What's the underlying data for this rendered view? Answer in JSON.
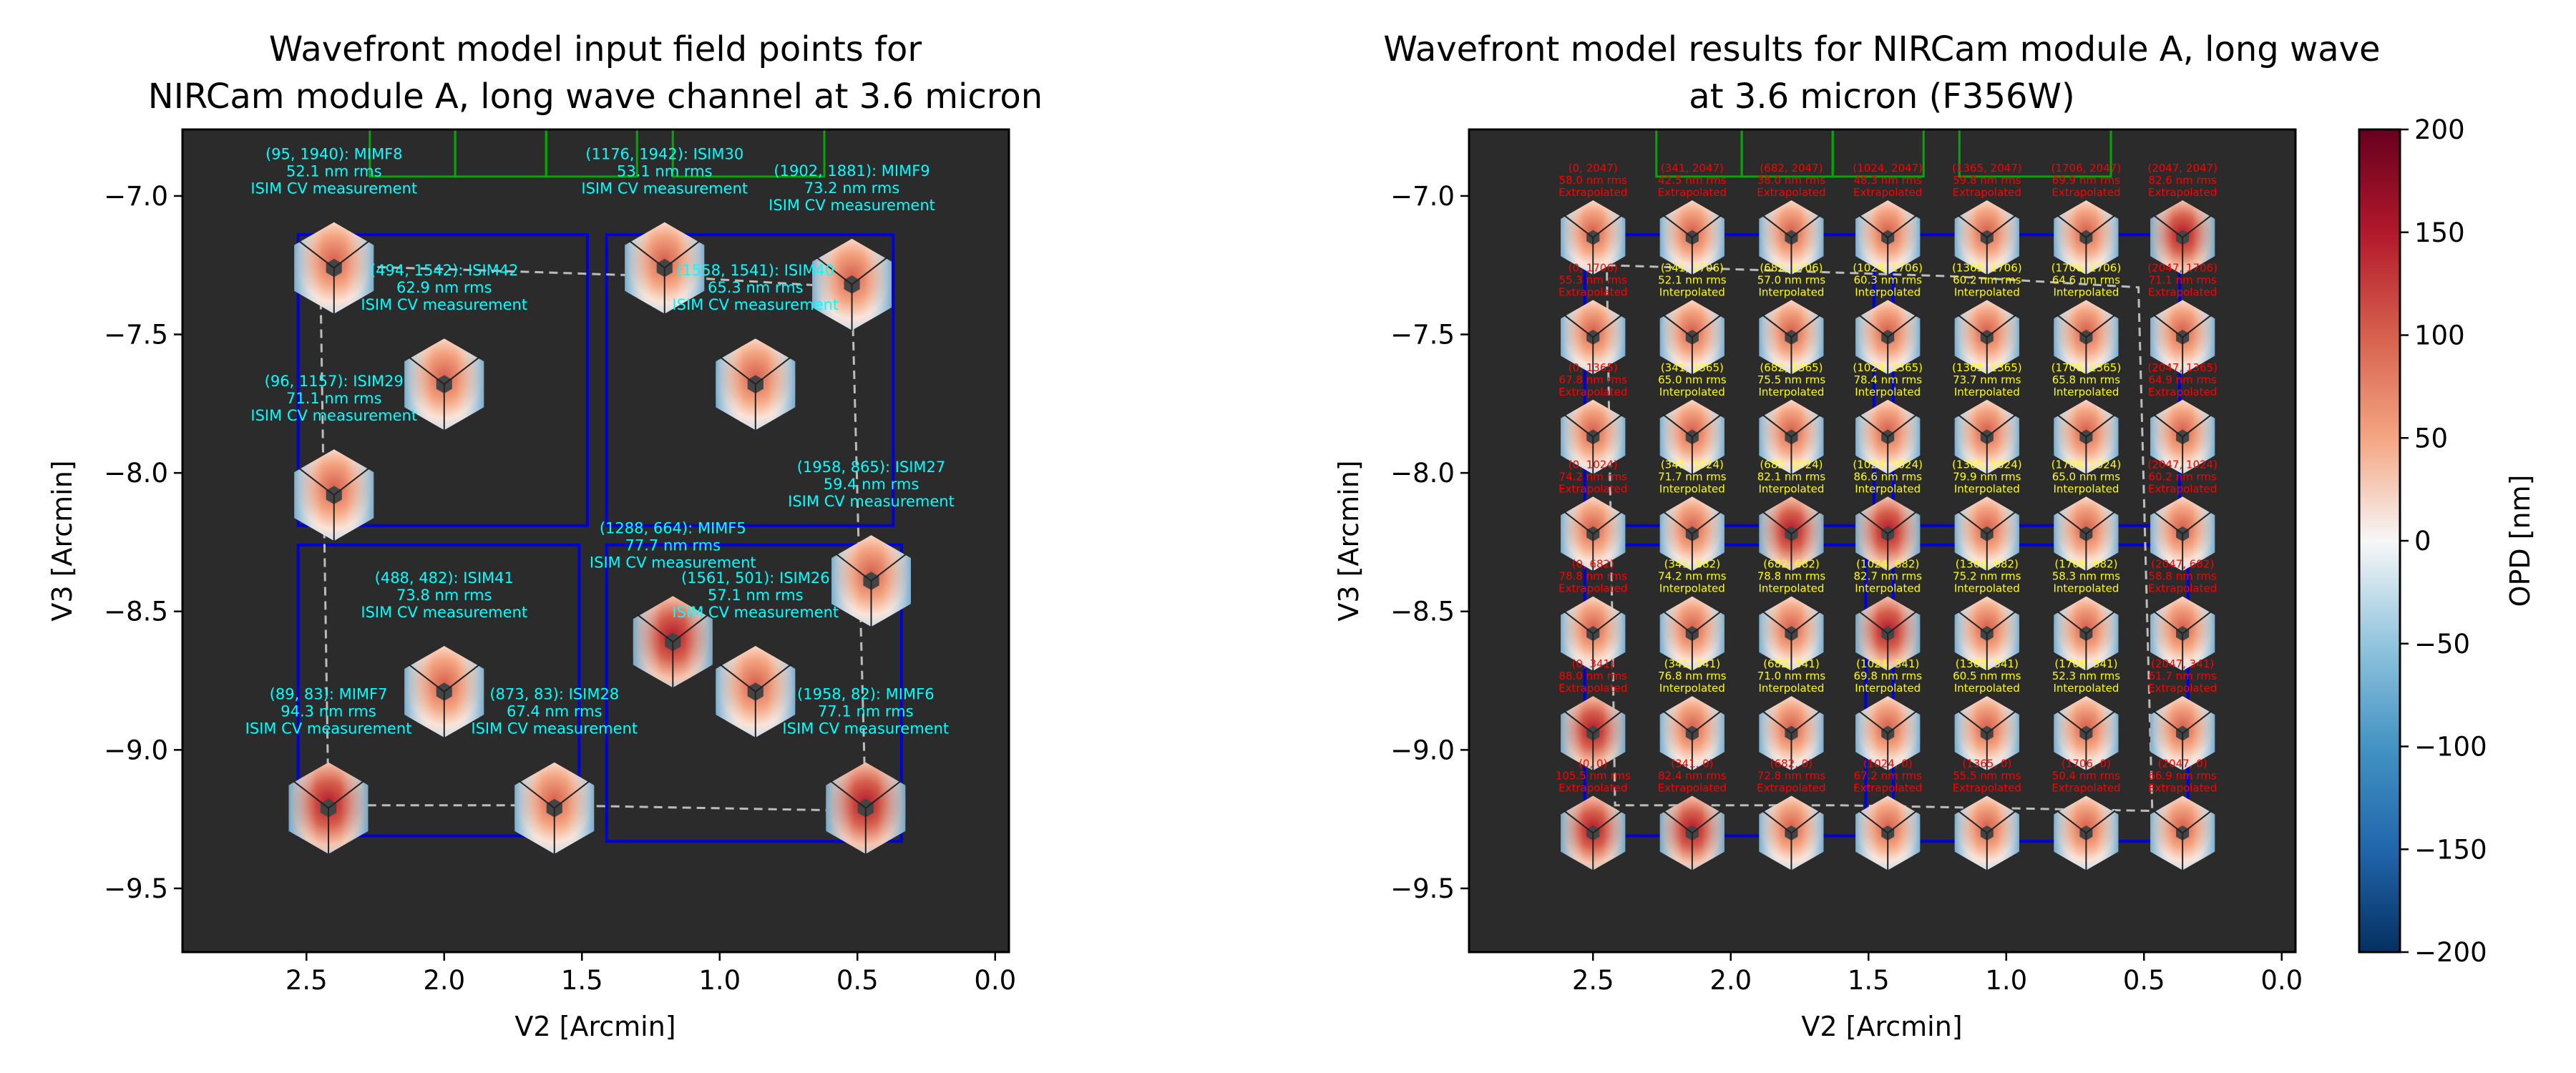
{
  "colors": {
    "plot_bg": "#2b2b2b",
    "field_label": "#00ffff",
    "extrap_label": "#ff0000",
    "interp_label": "#ffff00",
    "aperture_outline": "#0000dd",
    "neighbor_outline": "#00aa00",
    "dashed_outline": "#bbbbbb",
    "axis_text": "#000000"
  },
  "chart_data": [
    {
      "type": "scatter",
      "title_lines": [
        "Wavefront model input field points for",
        "NIRCam module A, long wave channel at 3.6 micron"
      ],
      "xlabel": "V2 [Arcmin]",
      "ylabel": "V3 [Arcmin]",
      "xlim": [
        2.95,
        -0.05
      ],
      "ylim": [
        -9.73,
        -6.76
      ],
      "xticks": [
        "2.5",
        "2.0",
        "1.5",
        "1.0",
        "0.5",
        "0.0"
      ],
      "yticks": [
        "-7.0",
        "-7.5",
        "-8.0",
        "-8.5",
        "-9.0",
        "-9.5"
      ],
      "points": [
        {
          "v2": 2.4,
          "v3": -7.26,
          "label": [
            "(95, 1940): MIMF8",
            "52.1 nm rms",
            "ISIM CV measurement"
          ],
          "opd": 52.1
        },
        {
          "v2": 1.2,
          "v3": -7.26,
          "label": [
            "(1176, 1942): ISIM30",
            "53.1 nm rms",
            "ISIM CV measurement"
          ],
          "opd": 53.1
        },
        {
          "v2": 0.52,
          "v3": -7.32,
          "label": [
            "(1902, 1881): MIMF9",
            "73.2 nm rms",
            "ISIM CV measurement"
          ],
          "opd": 73.2
        },
        {
          "v2": 2.0,
          "v3": -7.68,
          "label": [
            "(494, 1542): ISIM42",
            "62.9 nm rms",
            "ISIM CV measurement"
          ],
          "opd": 62.9
        },
        {
          "v2": 0.87,
          "v3": -7.68,
          "label": [
            "(1558, 1541): ISIM40",
            "65.3 nm rms",
            "ISIM CV measurement"
          ],
          "opd": 65.3
        },
        {
          "v2": 2.4,
          "v3": -8.08,
          "label": [
            "(96, 1157): ISIM29",
            "71.1 nm rms",
            "ISIM CV measurement"
          ],
          "opd": 71.1
        },
        {
          "v2": 0.45,
          "v3": -8.39,
          "label": [
            "(1958, 865): ISIM27",
            "59.4 nm rms",
            "ISIM CV measurement"
          ],
          "opd": 59.4
        },
        {
          "v2": 1.17,
          "v3": -8.61,
          "label": [
            "(1288, 664): MIMF5",
            "77.7 nm rms",
            "ISIM CV measurement"
          ],
          "opd": 77.7
        },
        {
          "v2": 0.87,
          "v3": -8.79,
          "label": [
            "(1561, 501): ISIM26",
            "57.1 nm rms",
            "ISIM CV measurement"
          ],
          "opd": 57.1
        },
        {
          "v2": 2.0,
          "v3": -8.79,
          "label": [
            "(488, 482): ISIM41",
            "73.8 nm rms",
            "ISIM CV measurement"
          ],
          "opd": 73.8
        },
        {
          "v2": 2.42,
          "v3": -9.21,
          "label": [
            "(89, 83): MIMF7",
            "94.3 nm rms",
            "ISIM CV measurement"
          ],
          "opd": 94.3
        },
        {
          "v2": 1.6,
          "v3": -9.21,
          "label": [
            "(873, 83): ISIM28",
            "67.4 nm rms",
            "ISIM CV measurement"
          ],
          "opd": 67.4
        },
        {
          "v2": 0.47,
          "v3": -9.21,
          "label": [
            "(1958, 82): MIMF6",
            "77.1 nm rms",
            "ISIM CV measurement"
          ],
          "opd": 77.1
        }
      ]
    },
    {
      "type": "scatter",
      "title_lines": [
        "Wavefront model results for NIRCam module A, long wave",
        "at 3.6 micron (F356W)"
      ],
      "xlabel": "V2 [Arcmin]",
      "ylabel": "V3 [Arcmin]",
      "xlim": [
        2.95,
        -0.05
      ],
      "ylim": [
        -9.73,
        -6.76
      ],
      "xticks": [
        "2.5",
        "2.0",
        "1.5",
        "1.0",
        "0.5",
        "0.0"
      ],
      "yticks": [
        "-7.0",
        "-7.5",
        "-8.0",
        "-8.5",
        "-9.0",
        "-9.5"
      ],
      "grid_v2": [
        2.5,
        2.14,
        1.78,
        1.43,
        1.07,
        0.71,
        0.36
      ],
      "grid_v3": [
        -7.15,
        -7.51,
        -7.87,
        -8.22,
        -8.58,
        -8.94,
        -9.3
      ],
      "grid_pixel_x": [
        "0",
        "341",
        "682",
        "1024",
        "1365",
        "1706",
        "2047"
      ],
      "grid_pixel_y": [
        "2047",
        "1706",
        "1365",
        "1024",
        "682",
        "341",
        "0"
      ],
      "rms": [
        [
          "58.0",
          "42.5",
          "38.0",
          "48.3",
          "59.8",
          "69.9",
          "82.6"
        ],
        [
          "55.3",
          "52.1",
          "57.0",
          "60.3",
          "60.2",
          "64.6",
          "71.1"
        ],
        [
          "67.8",
          "65.0",
          "75.5",
          "78.4",
          "73.7",
          "65.8",
          "64.9"
        ],
        [
          "74.2",
          "71.7",
          "82.1",
          "86.6",
          "79.9",
          "65.0",
          "60.2"
        ],
        [
          "78.8",
          "74.2",
          "78.8",
          "82.7",
          "75.2",
          "58.3",
          "58.8"
        ],
        [
          "88.0",
          "76.8",
          "71.0",
          "69.8",
          "60.5",
          "52.3",
          "61.7"
        ],
        [
          "105.5",
          "82.4",
          "72.8",
          "67.2",
          "55.5",
          "50.4",
          "66.9"
        ]
      ],
      "interp_text": "Interpolated",
      "extrap_text": "Extrapolated",
      "rms_suffix": "nm rms"
    }
  ],
  "colorbar": {
    "label": "OPD [nm]",
    "min": -200,
    "max": 200,
    "ticks": [
      "200",
      "150",
      "100",
      "50",
      "0",
      "−50",
      "−100",
      "−150",
      "−200"
    ]
  }
}
